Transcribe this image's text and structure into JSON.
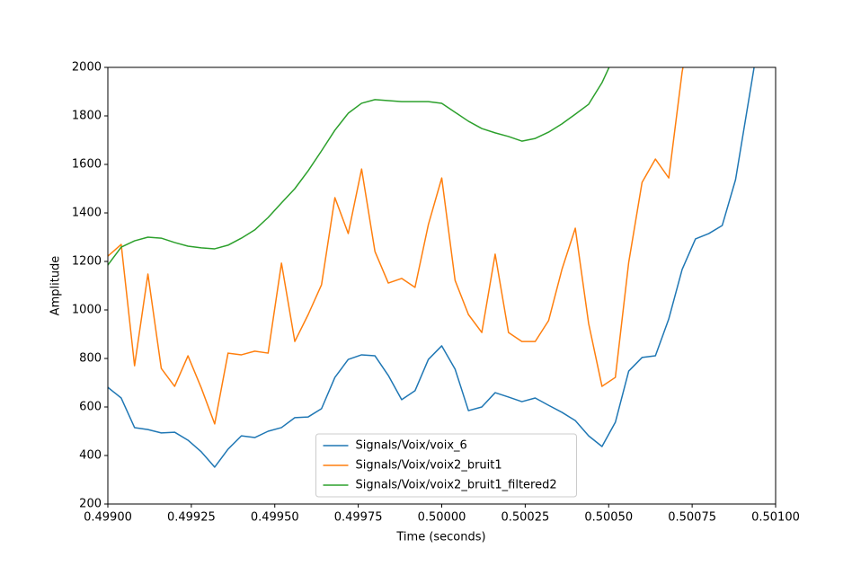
{
  "chart_data": {
    "type": "line",
    "xlabel": "Time (seconds)",
    "ylabel": "Amplitude",
    "x": [
      0.499,
      0.49904,
      0.49908,
      0.49912,
      0.49916,
      0.4992,
      0.49924,
      0.49928,
      0.49932,
      0.49936,
      0.4994,
      0.49944,
      0.49948,
      0.49952,
      0.49956,
      0.4996,
      0.49964,
      0.49968,
      0.49972,
      0.49976,
      0.4998,
      0.49984,
      0.49988,
      0.49992,
      0.49996,
      0.5,
      0.50004,
      0.50008,
      0.50012,
      0.50016,
      0.5002,
      0.50024,
      0.50028,
      0.50032,
      0.50036,
      0.5004,
      0.50044,
      0.50048,
      0.50052,
      0.50056,
      0.5006,
      0.50064,
      0.50068,
      0.50072,
      0.50076,
      0.5008,
      0.50084,
      0.50088,
      0.50092,
      0.50096,
      0.501
    ],
    "series": [
      {
        "name": "Signals/Voix/voix_6",
        "color": "#1f77b4",
        "values": [
          681,
          637,
          515,
          507,
          493,
          496,
          463,
          415,
          352,
          426,
          481,
          474,
          500,
          515,
          556,
          559,
          593,
          722,
          796,
          815,
          811,
          730,
          630,
          667,
          796,
          852,
          756,
          585,
          600,
          659,
          641,
          622,
          637,
          607,
          578,
          544,
          481,
          437,
          537,
          748,
          804,
          811,
          963,
          1167,
          1293,
          1315,
          1348,
          1537,
          1870,
          2204,
          null
        ]
      },
      {
        "name": "Signals/Voix/voix2_bruit1",
        "color": "#ff7f0e",
        "values": [
          1222,
          1270,
          770,
          1148,
          759,
          685,
          811,
          678,
          530,
          822,
          815,
          830,
          822,
          1193,
          870,
          981,
          1104,
          1463,
          1315,
          1581,
          1241,
          1111,
          1130,
          1093,
          1352,
          1544,
          1122,
          981,
          907,
          1230,
          907,
          870,
          870,
          956,
          1167,
          1337,
          944,
          685,
          722,
          1196,
          1526,
          1622,
          1544,
          1981,
          2278,
          null,
          null,
          null,
          null,
          null,
          null
        ]
      },
      {
        "name": "Signals/Voix/voix2_bruit1_filtered2",
        "color": "#2ca02c",
        "values": [
          1185,
          1259,
          1285,
          1300,
          1296,
          1278,
          1263,
          1256,
          1252,
          1267,
          1296,
          1330,
          1381,
          1441,
          1500,
          1574,
          1656,
          1741,
          1811,
          1852,
          1867,
          1863,
          1859,
          1859,
          1859,
          1852,
          1815,
          1778,
          1748,
          1730,
          1715,
          1696,
          1707,
          1733,
          1767,
          1807,
          1848,
          1937,
          2056,
          2250,
          null,
          null,
          null,
          null,
          null,
          null,
          null,
          null,
          null,
          null,
          null
        ]
      }
    ],
    "xlim": [
      0.499,
      0.501
    ],
    "xticks": [
      {
        "value": 0.499,
        "label": "0.49900"
      },
      {
        "value": 0.49925,
        "label": "0.49925"
      },
      {
        "value": 0.4995,
        "label": "0.49950"
      },
      {
        "value": 0.49975,
        "label": "0.49975"
      },
      {
        "value": 0.5,
        "label": "0.50000"
      },
      {
        "value": 0.50025,
        "label": "0.50025"
      },
      {
        "value": 0.5005,
        "label": "0.50050"
      },
      {
        "value": 0.50075,
        "label": "0.50075"
      },
      {
        "value": 0.501,
        "label": "0.50100"
      }
    ],
    "ylim": [
      200,
      2000
    ],
    "yticks": [
      200,
      400,
      600,
      800,
      1000,
      1200,
      1400,
      1600,
      1800,
      2000
    ],
    "grid": false,
    "legend": "lower center"
  }
}
